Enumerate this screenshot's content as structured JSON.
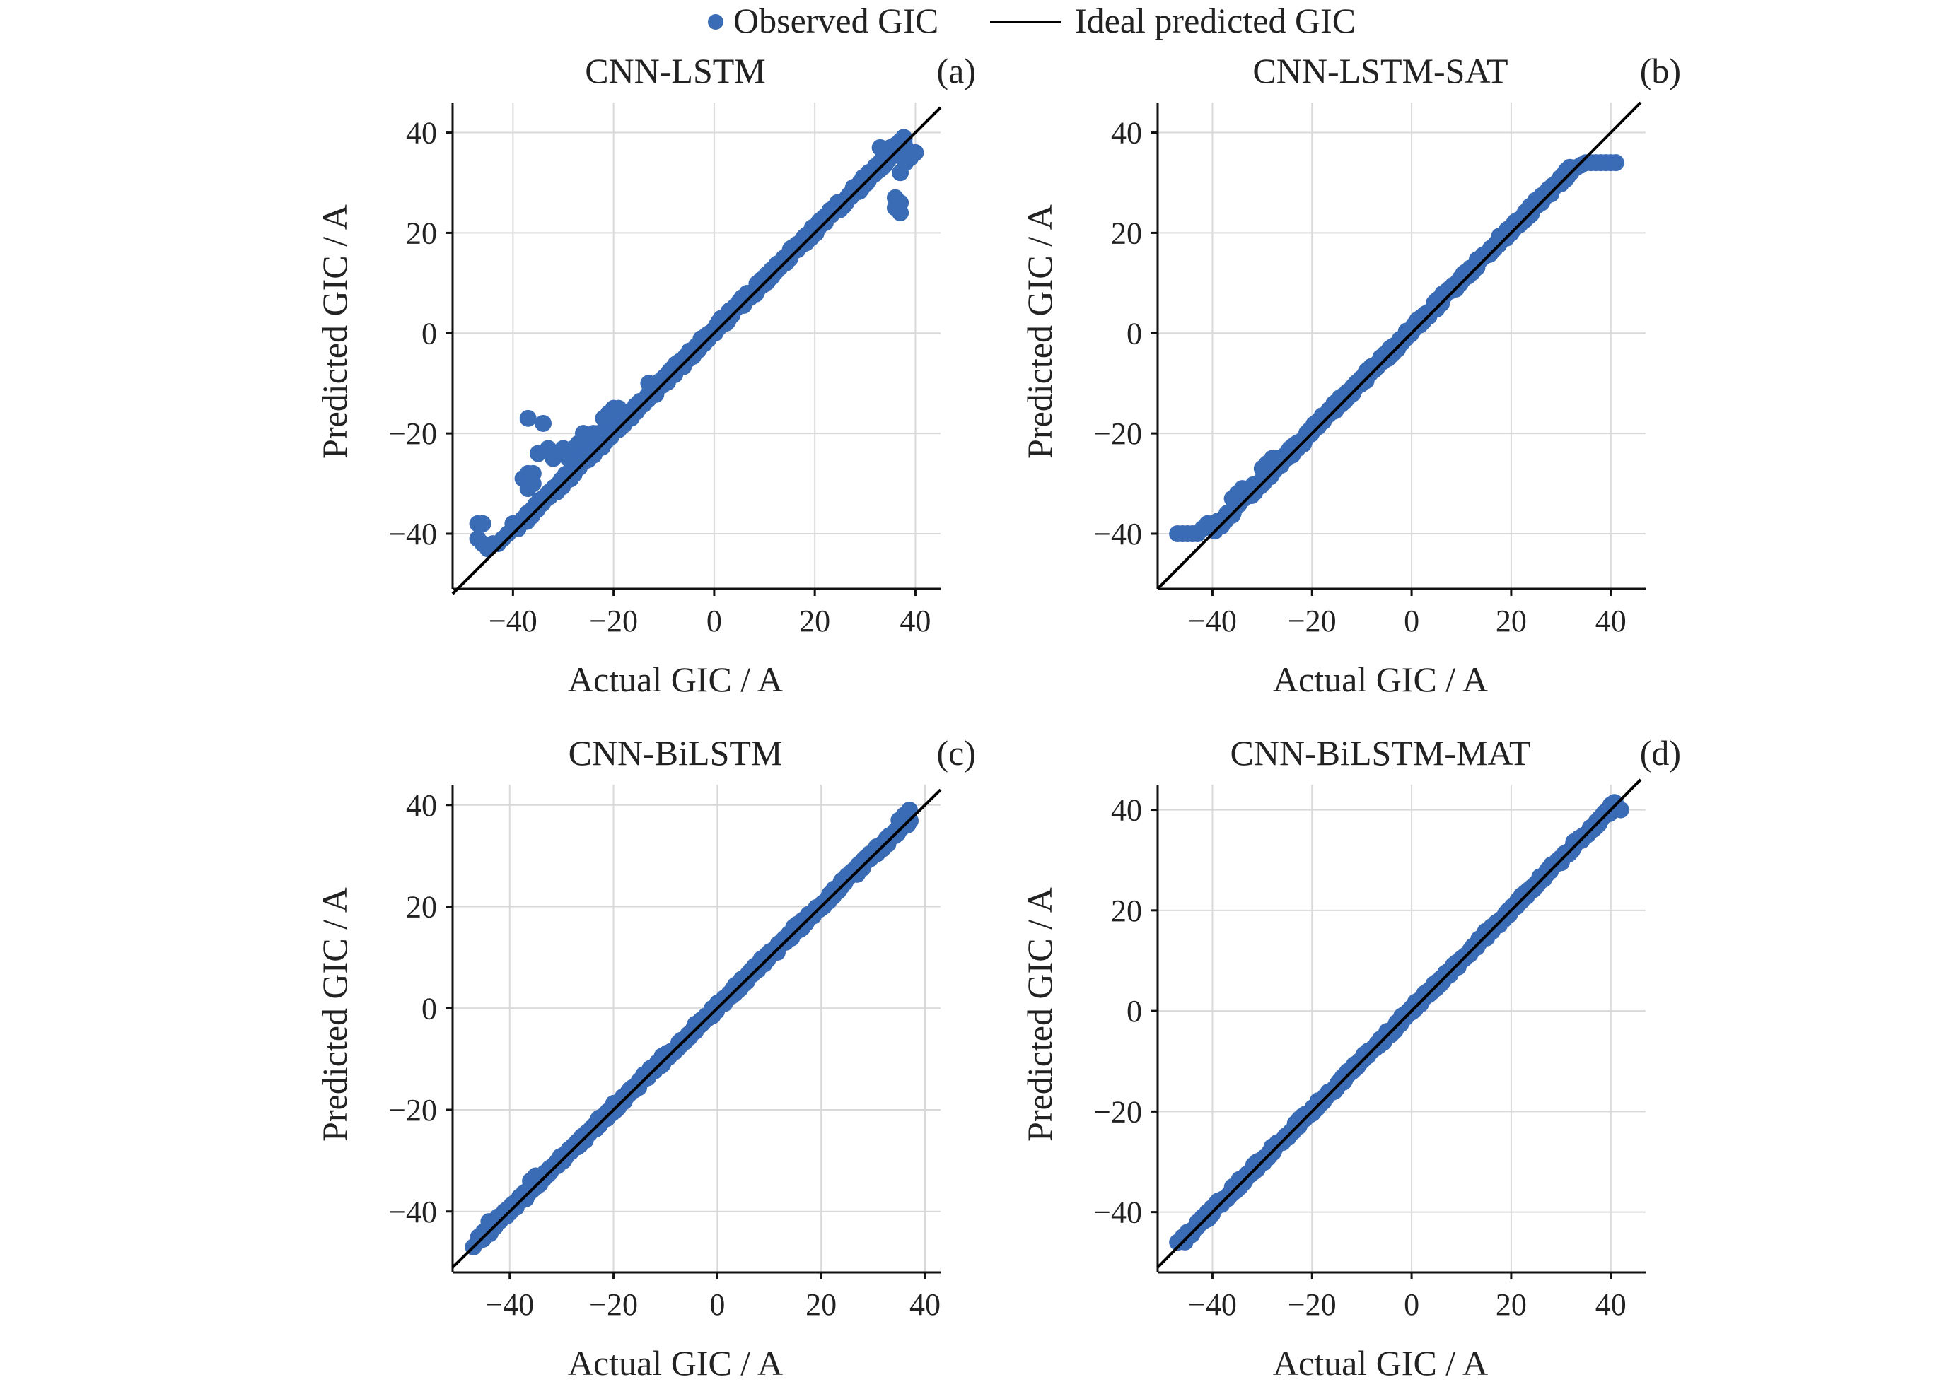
{
  "legend": {
    "observed_label": "Observed GIC",
    "ideal_label": "Ideal predicted GIC",
    "marker_color": "#3a6bb5",
    "line_color": "#000000"
  },
  "chart_data": [
    {
      "type": "scatter",
      "title": "CNN-LSTM",
      "panel_label": "(a)",
      "xlabel": "Actual GIC / A",
      "ylabel": "Predicted GIC / A",
      "xlim": [
        -52,
        45
      ],
      "ylim": [
        -51,
        46
      ],
      "xticks": [
        -40,
        -20,
        0,
        20,
        40
      ],
      "yticks": [
        -40,
        -20,
        0,
        20,
        40
      ],
      "xtick_labels": [
        "−40",
        "−20",
        "0",
        "20",
        "40"
      ],
      "ytick_labels": [
        "−40",
        "−20",
        "0",
        "20",
        "40"
      ],
      "grid": true,
      "ideal_line": [
        [
          -52,
          -52
        ],
        [
          45,
          45
        ]
      ],
      "series": [
        {
          "name": "Observed GIC",
          "main_band": {
            "x_from": -38,
            "x_to": 38,
            "slope": 1.0,
            "intercept": 0.5,
            "spread": 0.9
          },
          "points": [
            [
              -47,
              -38
            ],
            [
              -46,
              -38
            ],
            [
              -47,
              -41
            ],
            [
              -46,
              -42
            ],
            [
              -45,
              -43
            ],
            [
              -44,
              -42
            ],
            [
              -43,
              -42
            ],
            [
              -42,
              -41
            ],
            [
              -41,
              -40
            ],
            [
              -40,
              -38
            ],
            [
              -39,
              -39
            ],
            [
              -38,
              -37
            ],
            [
              -38,
              -29
            ],
            [
              -37,
              -28
            ],
            [
              -37,
              -31
            ],
            [
              -36,
              -28
            ],
            [
              -36,
              -30
            ],
            [
              -37,
              -17
            ],
            [
              -34,
              -18
            ],
            [
              -35,
              -24
            ],
            [
              -33,
              -23
            ],
            [
              -32,
              -25
            ],
            [
              -31,
              -24
            ],
            [
              -30,
              -23
            ],
            [
              -29,
              -25
            ],
            [
              -28,
              -23
            ],
            [
              -27,
              -22
            ],
            [
              -26,
              -20
            ],
            [
              -25,
              -21
            ],
            [
              -24,
              -20
            ],
            [
              -23,
              -20
            ],
            [
              -22,
              -17
            ],
            [
              -21,
              -16
            ],
            [
              -20,
              -15
            ],
            [
              -19,
              -15
            ],
            [
              -13,
              -10
            ],
            [
              -12,
              -11
            ],
            [
              -11,
              -10
            ],
            [
              33,
              37
            ],
            [
              34,
              36
            ],
            [
              35,
              37
            ],
            [
              36,
              36
            ],
            [
              37,
              36
            ],
            [
              38,
              37
            ],
            [
              39,
              35
            ],
            [
              40,
              36
            ],
            [
              38,
              34
            ],
            [
              37,
              32
            ],
            [
              36,
              27
            ],
            [
              37,
              26
            ],
            [
              37,
              24
            ],
            [
              36,
              25
            ]
          ]
        }
      ]
    },
    {
      "type": "scatter",
      "title": "CNN-LSTM-SAT",
      "panel_label": "(b)",
      "xlabel": "Actual GIC / A",
      "ylabel": "Predicted GIC / A",
      "xlim": [
        -51,
        47
      ],
      "ylim": [
        -51,
        46
      ],
      "xticks": [
        -40,
        -20,
        0,
        20,
        40
      ],
      "yticks": [
        -40,
        -20,
        0,
        20,
        40
      ],
      "xtick_labels": [
        "−40",
        "−20",
        "0",
        "20",
        "40"
      ],
      "ytick_labels": [
        "−40",
        "−20",
        "0",
        "20",
        "40"
      ],
      "grid": true,
      "ideal_line": [
        [
          -51,
          -51
        ],
        [
          46,
          46
        ]
      ],
      "series": [
        {
          "name": "Observed GIC",
          "main_band": {
            "x_from": -40,
            "x_to": 32,
            "slope": 1.0,
            "intercept": 0.6,
            "spread": 0.8
          },
          "points": [
            [
              -47,
              -40
            ],
            [
              -46,
              -40
            ],
            [
              -45,
              -40
            ],
            [
              -44,
              -40
            ],
            [
              -43,
              -40
            ],
            [
              -42,
              -39
            ],
            [
              -41,
              -38
            ],
            [
              -40,
              -38
            ],
            [
              -36,
              -33
            ],
            [
              -35,
              -32
            ],
            [
              -34,
              -31
            ],
            [
              -30,
              -27
            ],
            [
              -29,
              -26
            ],
            [
              -28,
              -25
            ],
            [
              -27,
              -25
            ],
            [
              30,
              31
            ],
            [
              31,
              31.5
            ],
            [
              32,
              32
            ],
            [
              33,
              33
            ],
            [
              34,
              33.5
            ],
            [
              35,
              34
            ],
            [
              36,
              34
            ],
            [
              37,
              34
            ],
            [
              38,
              34
            ],
            [
              39,
              34
            ],
            [
              40,
              34
            ],
            [
              41,
              34
            ]
          ]
        }
      ]
    },
    {
      "type": "scatter",
      "title": "CNN-BiLSTM",
      "panel_label": "(c)",
      "xlabel": "Actual GIC / A",
      "ylabel": "Predicted GIC / A",
      "xlim": [
        -51,
        43
      ],
      "ylim": [
        -52,
        44
      ],
      "xticks": [
        -40,
        -20,
        0,
        20,
        40
      ],
      "yticks": [
        -40,
        -20,
        0,
        20,
        40
      ],
      "xtick_labels": [
        "−40",
        "−20",
        "0",
        "20",
        "40"
      ],
      "ytick_labels": [
        "−40",
        "−20",
        "0",
        "20",
        "40"
      ],
      "grid": true,
      "ideal_line": [
        [
          -51,
          -51
        ],
        [
          43,
          43
        ]
      ],
      "series": [
        {
          "name": "Observed GIC",
          "main_band": {
            "x_from": -46,
            "x_to": 37,
            "slope": 1.0,
            "intercept": 0.3,
            "spread": 0.7
          },
          "points": [
            [
              -47,
              -47
            ],
            [
              -46,
              -45
            ],
            [
              -45,
              -44
            ],
            [
              -44,
              -42
            ],
            [
              -43,
              -42
            ],
            [
              -42,
              -41
            ],
            [
              -41,
              -40
            ],
            [
              -36,
              -34
            ],
            [
              -35,
              -33
            ],
            [
              35,
              37
            ],
            [
              36,
              38
            ],
            [
              37,
              39
            ],
            [
              37,
              37
            ]
          ]
        }
      ]
    },
    {
      "type": "scatter",
      "title": "CNN-BiLSTM-MAT",
      "panel_label": "(d)",
      "xlabel": "Actual GIC / A",
      "ylabel": "Predicted GIC / A",
      "xlim": [
        -51,
        47
      ],
      "ylim": [
        -52,
        45
      ],
      "xticks": [
        -40,
        -20,
        0,
        20,
        40
      ],
      "yticks": [
        -40,
        -20,
        0,
        20,
        40
      ],
      "xtick_labels": [
        "−40",
        "−20",
        "0",
        "20",
        "40"
      ],
      "ytick_labels": [
        "−40",
        "−20",
        "0",
        "20",
        "40"
      ],
      "grid": true,
      "ideal_line": [
        [
          -51,
          -51
        ],
        [
          46,
          46
        ]
      ],
      "series": [
        {
          "name": "Observed GIC",
          "main_band": {
            "x_from": -46,
            "x_to": 41,
            "slope": 1.0,
            "intercept": 0.2,
            "spread": 0.6
          },
          "points": [
            [
              -47,
              -46
            ],
            [
              -46,
              -45
            ],
            [
              -45,
              -44
            ],
            [
              -43,
              -42
            ],
            [
              -42,
              -41
            ],
            [
              -41,
              -40
            ],
            [
              40,
              40
            ],
            [
              41,
              40.5
            ],
            [
              42,
              40
            ]
          ]
        }
      ]
    }
  ]
}
